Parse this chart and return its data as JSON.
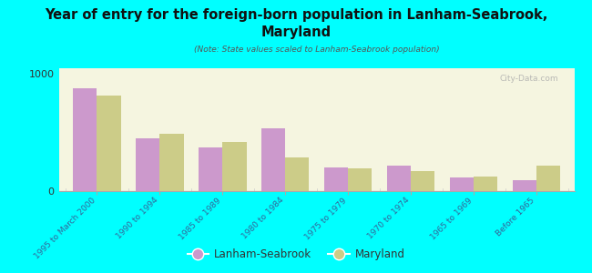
{
  "title": "Year of entry for the foreign-born population in Lanham-Seabrook,\nMaryland",
  "subtitle": "(Note: State values scaled to Lanham-Seabrook population)",
  "categories": [
    "1995 to March 2000",
    "1990 to 1994",
    "1985 to 1989",
    "1980 to 1984",
    "1975 to 1979",
    "1970 to 1974",
    "1965 to 1969",
    "Before 1965"
  ],
  "lanham_values": [
    880,
    450,
    370,
    540,
    200,
    215,
    115,
    90
  ],
  "maryland_values": [
    820,
    490,
    420,
    290,
    195,
    170,
    125,
    215
  ],
  "lanham_color": "#cc99cc",
  "maryland_color": "#cccc88",
  "background_color": "#00ffff",
  "plot_bg_color": "#f5f5e0",
  "ylim": [
    0,
    1050
  ],
  "yticks": [
    0,
    1000
  ],
  "bar_width": 0.38,
  "watermark": "City-Data.com"
}
